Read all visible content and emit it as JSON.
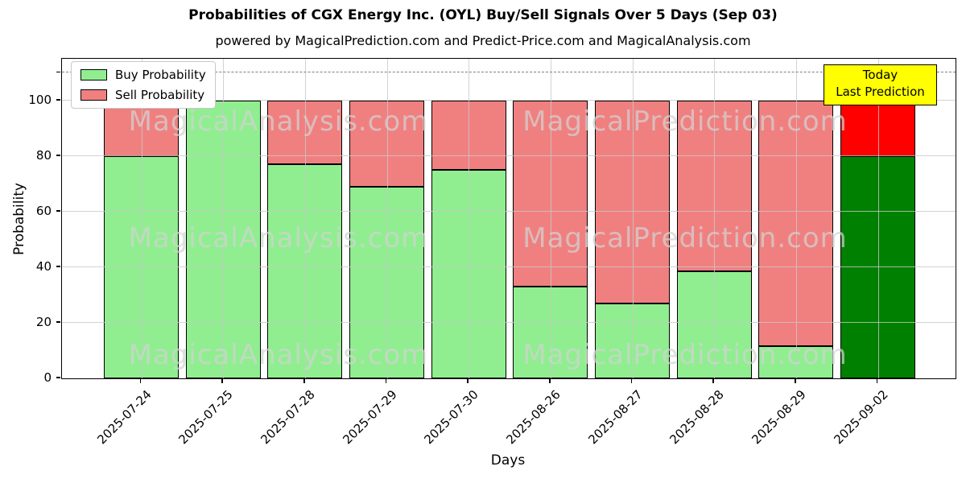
{
  "chart_data": {
    "type": "bar",
    "stacked": true,
    "title": "Probabilities of CGX Energy Inc. (OYL) Buy/Sell Signals Over 5 Days (Sep 03)",
    "subtitle": "powered by MagicalPrediction.com and Predict-Price.com and MagicalAnalysis.com",
    "xlabel": "Days",
    "ylabel": "Probability",
    "categories": [
      "2025-07-24",
      "2025-07-25",
      "2025-07-28",
      "2025-07-29",
      "2025-07-30",
      "2025-08-26",
      "2025-08-27",
      "2025-08-28",
      "2025-08-29",
      "2025-09-02"
    ],
    "series": [
      {
        "name": "Buy Probability",
        "color": "#90EE90",
        "values": [
          80,
          100,
          77,
          69,
          75,
          33,
          27,
          38.5,
          11.5,
          80
        ]
      },
      {
        "name": "Sell Probability",
        "color": "#F08080",
        "values": [
          20,
          0,
          23,
          31,
          25,
          67,
          73,
          61.5,
          88.5,
          20
        ]
      }
    ],
    "final_bar_colors": {
      "buy": "#008000",
      "sell": "#ff0000"
    },
    "bar_edge_color": "#000000",
    "yticks": [
      0,
      20,
      40,
      60,
      80,
      100
    ],
    "ylim": [
      0,
      115
    ],
    "dashed_line_y": 110,
    "grid": true,
    "legend_position": "upper left"
  },
  "annotation": {
    "line1": "Today",
    "line2": "Last Prediction",
    "bg_color": "#ffff00",
    "border_color": "#000000"
  },
  "watermarks": {
    "left_text": "MagicalAnalysis.com",
    "right_text": "MagicalPrediction.com"
  }
}
